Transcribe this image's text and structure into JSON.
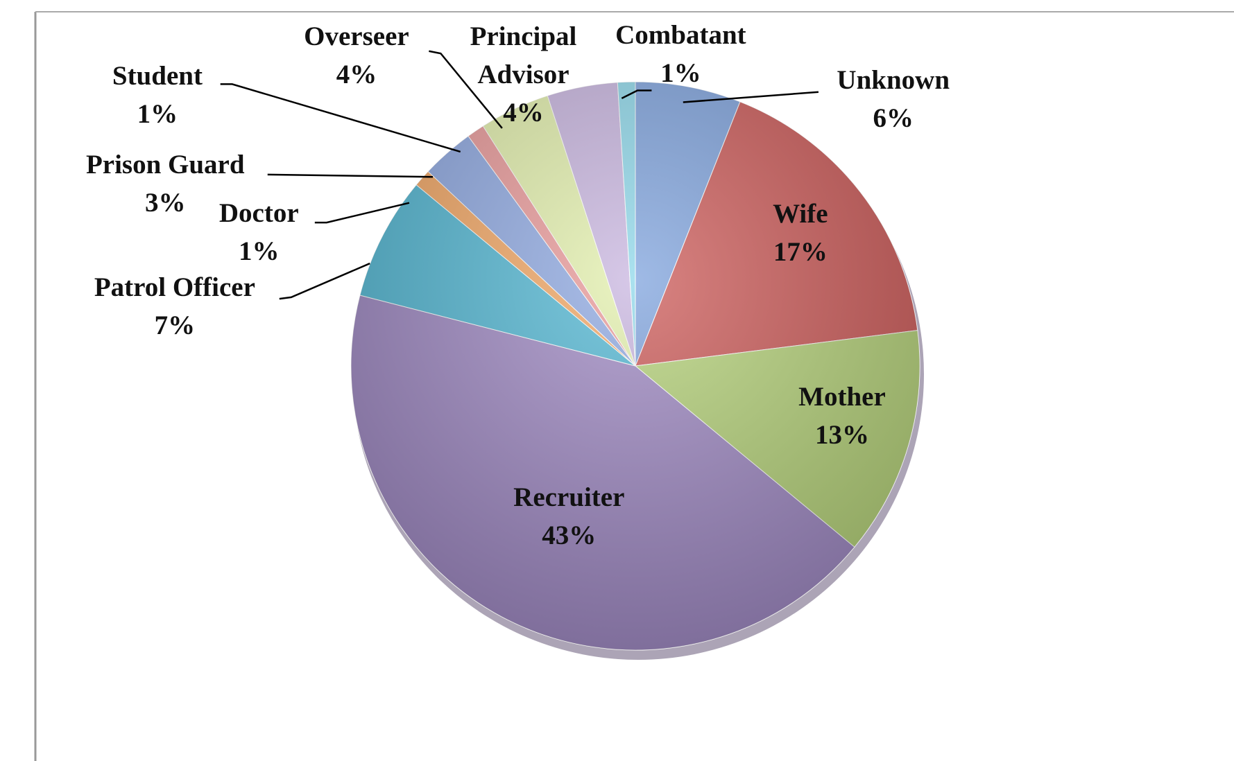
{
  "chart_data": {
    "type": "pie",
    "categories": [
      "Unknown",
      "Wife",
      "Mother",
      "Recruiter",
      "Patrol Officer",
      "Doctor",
      "Prison Guard",
      "Student",
      "Overseer",
      "Principal Advisor",
      "Combatant"
    ],
    "values": [
      6,
      17,
      13,
      43,
      7,
      1,
      3,
      1,
      4,
      4,
      1
    ],
    "value_labels": [
      "6%",
      "17%",
      "13%",
      "43%",
      "7%",
      "1%",
      "3%",
      "1%",
      "4%",
      "4%",
      "1%"
    ],
    "colors": [
      "#7fa3dd",
      "#cc5a58",
      "#b5d279",
      "#9f89c3",
      "#52b7d3",
      "#f3a764",
      "#8fa9e2",
      "#ea9a9a",
      "#e3f0ad",
      "#c9b6e0",
      "#8fd8ea"
    ]
  }
}
